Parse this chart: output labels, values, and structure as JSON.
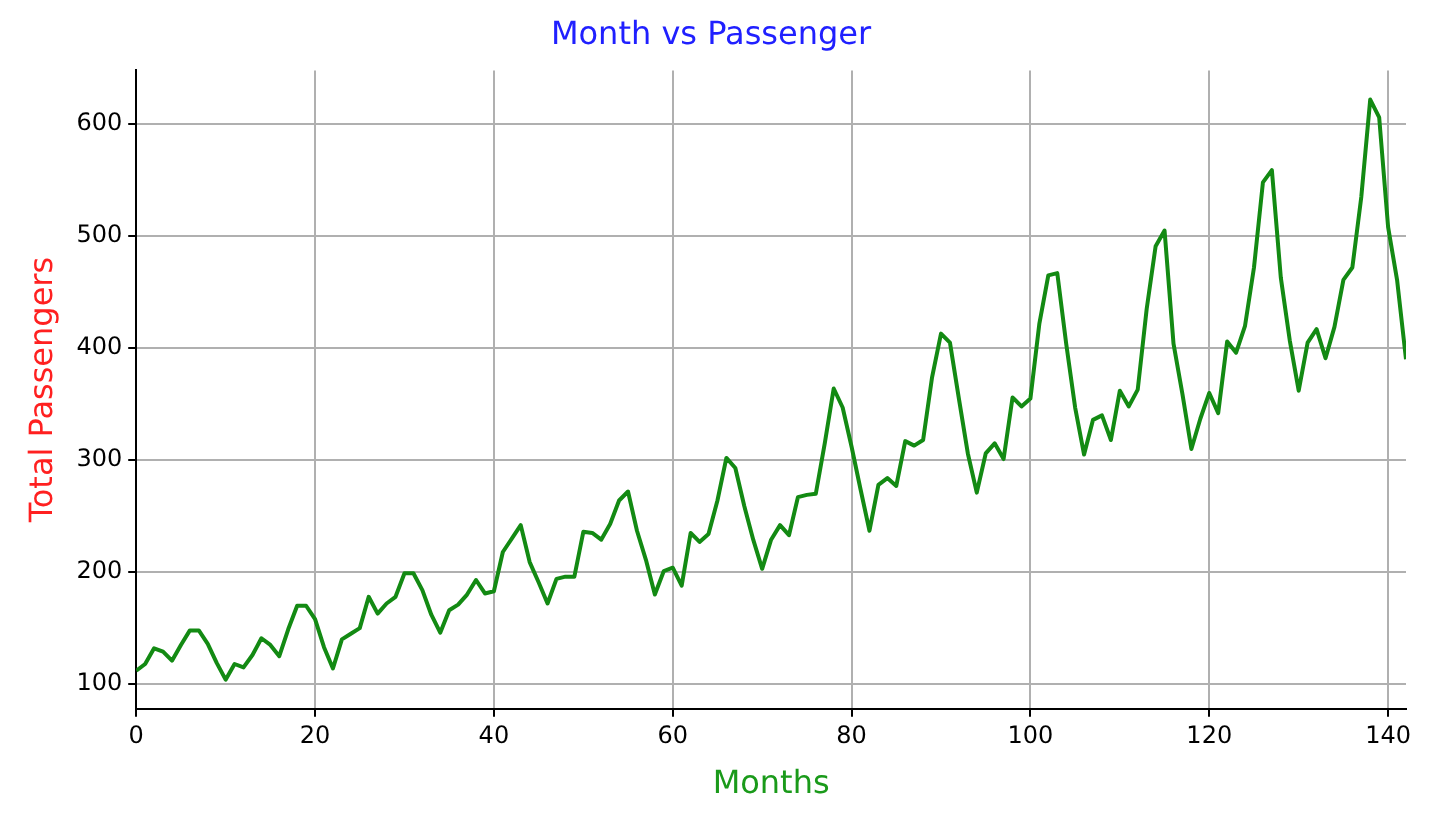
{
  "chart_data": {
    "type": "line",
    "title": "Month vs Passenger",
    "xlabel": "Months",
    "ylabel": "Total Passengers",
    "x": [
      0,
      1,
      2,
      3,
      4,
      5,
      6,
      7,
      8,
      9,
      10,
      11,
      12,
      13,
      14,
      15,
      16,
      17,
      18,
      19,
      20,
      21,
      22,
      23,
      24,
      25,
      26,
      27,
      28,
      29,
      30,
      31,
      32,
      33,
      34,
      35,
      36,
      37,
      38,
      39,
      40,
      41,
      42,
      43,
      44,
      45,
      46,
      47,
      48,
      49,
      50,
      51,
      52,
      53,
      54,
      55,
      56,
      57,
      58,
      59,
      60,
      61,
      62,
      63,
      64,
      65,
      66,
      67,
      68,
      69,
      70,
      71,
      72,
      73,
      74,
      75,
      76,
      77,
      78,
      79,
      80,
      81,
      82,
      83,
      84,
      85,
      86,
      87,
      88,
      89,
      90,
      91,
      92,
      93,
      94,
      95,
      96,
      97,
      98,
      99,
      100,
      101,
      102,
      103,
      104,
      105,
      106,
      107,
      108,
      109,
      110,
      111,
      112,
      113,
      114,
      115,
      116,
      117,
      118,
      119,
      120,
      121,
      122,
      123,
      124,
      125,
      126,
      127,
      128,
      129,
      130,
      131,
      132,
      133,
      134,
      135,
      136,
      137,
      138,
      139,
      140,
      141,
      142
    ],
    "series": [
      {
        "color": "#138a13",
        "values": [
          112,
          118,
          132,
          129,
          121,
          135,
          148,
          148,
          136,
          119,
          104,
          118,
          115,
          126,
          141,
          135,
          125,
          149,
          170,
          170,
          158,
          133,
          114,
          140,
          145,
          150,
          178,
          163,
          172,
          178,
          199,
          199,
          184,
          162,
          146,
          166,
          171,
          180,
          193,
          181,
          183,
          218,
          230,
          242,
          209,
          191,
          172,
          194,
          196,
          196,
          236,
          235,
          229,
          243,
          264,
          272,
          237,
          211,
          180,
          201,
          204,
          188,
          235,
          227,
          234,
          264,
          302,
          293,
          259,
          229,
          203,
          229,
          242,
          233,
          267,
          269,
          270,
          315,
          364,
          347,
          312,
          274,
          237,
          278,
          284,
          277,
          317,
          313,
          318,
          374,
          413,
          405,
          355,
          306,
          271,
          306,
          315,
          301,
          356,
          348,
          355,
          422,
          465,
          467,
          404,
          347,
          305,
          336,
          340,
          318,
          362,
          348,
          363,
          435,
          491,
          505,
          404,
          359,
          310,
          337,
          360,
          342,
          406,
          396,
          420,
          472,
          548,
          559,
          463,
          407,
          362,
          405,
          417,
          391,
          419,
          461,
          472,
          535,
          622,
          606,
          508,
          461,
          390
        ]
      }
    ],
    "xlim": [
      0,
      142
    ],
    "xticks": [
      0,
      20,
      40,
      60,
      80,
      100,
      120,
      140
    ],
    "ylim": [
      78,
      648
    ],
    "yticks": [
      100,
      200,
      300,
      400,
      500,
      600
    ],
    "grid": true,
    "legend": false,
    "marker": "none",
    "line_style": "solid"
  }
}
